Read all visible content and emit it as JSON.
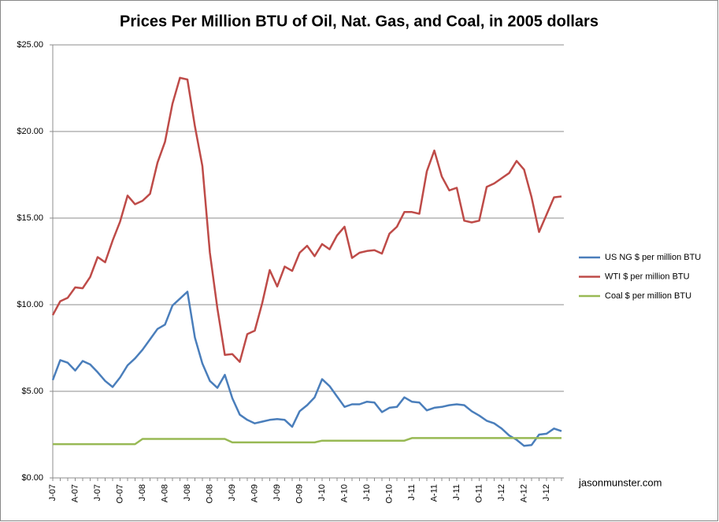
{
  "chart_data": {
    "type": "line",
    "title": "Prices Per Million BTU of Oil, Nat. Gas, and Coal, in 2005 dollars",
    "annotation": "jasonmunster.com",
    "categories": [
      "J-07",
      null,
      null,
      "A-07",
      null,
      null,
      "J-07",
      null,
      null,
      "O-07",
      null,
      null,
      "J-08",
      null,
      null,
      "A-08",
      null,
      null,
      "J-08",
      null,
      null,
      "O-08",
      null,
      null,
      "J-09",
      null,
      null,
      "A-09",
      null,
      null,
      "J-09",
      null,
      null,
      "O-09",
      null,
      null,
      "J-10",
      null,
      null,
      "A-10",
      null,
      null,
      "J-10",
      null,
      null,
      "O-10",
      null,
      null,
      "J-11",
      null,
      null,
      "A-11",
      null,
      null,
      "J-11",
      null,
      null,
      "O-11",
      null,
      null,
      "J-12",
      null,
      null,
      "A-12",
      null,
      null,
      "J-12",
      null,
      null
    ],
    "series": [
      {
        "name": "US NG $ per million BTU",
        "color": "#4a7ebb",
        "values": [
          5.65,
          6.8,
          6.65,
          6.2,
          6.75,
          6.55,
          6.1,
          5.6,
          5.25,
          5.8,
          6.5,
          6.9,
          7.4,
          8.0,
          8.6,
          8.85,
          9.95,
          10.35,
          10.75,
          8.1,
          6.6,
          5.6,
          5.2,
          5.95,
          4.6,
          3.65,
          3.35,
          3.15,
          3.25,
          3.35,
          3.4,
          3.35,
          2.95,
          3.85,
          4.2,
          4.65,
          5.7,
          5.3,
          4.7,
          4.1,
          4.25,
          4.25,
          4.4,
          4.35,
          3.8,
          4.05,
          4.1,
          4.65,
          4.4,
          4.35,
          3.9,
          4.05,
          4.1,
          4.2,
          4.25,
          4.2,
          3.85,
          3.6,
          3.3,
          3.15,
          2.85,
          2.45,
          2.2,
          1.85,
          1.9,
          2.5,
          2.55,
          2.85,
          2.7
        ]
      },
      {
        "name": "WTI $ per million BTU",
        "color": "#be4b48",
        "values": [
          9.4,
          10.2,
          10.4,
          11.0,
          10.95,
          11.6,
          12.75,
          12.45,
          13.7,
          14.8,
          16.3,
          15.8,
          16.0,
          16.4,
          18.2,
          19.4,
          21.6,
          23.1,
          23.0,
          20.3,
          18.0,
          13.0,
          9.8,
          7.1,
          7.15,
          6.7,
          8.3,
          8.5,
          10.1,
          12.0,
          11.05,
          12.2,
          11.95,
          13.0,
          13.4,
          12.8,
          13.5,
          13.2,
          14.0,
          14.5,
          12.7,
          13.0,
          13.1,
          13.15,
          12.95,
          14.1,
          14.5,
          15.35,
          15.35,
          15.25,
          17.7,
          18.9,
          17.4,
          16.6,
          16.75,
          14.85,
          14.75,
          14.85,
          16.8,
          17.0,
          17.3,
          17.6,
          18.3,
          17.8,
          16.2,
          14.2,
          15.2,
          16.2,
          16.25
        ]
      },
      {
        "name": "Coal $ per million BTU",
        "color": "#98b954",
        "values": [
          1.95,
          1.95,
          1.95,
          1.95,
          1.95,
          1.95,
          1.95,
          1.95,
          1.95,
          1.95,
          1.95,
          1.95,
          2.25,
          2.25,
          2.25,
          2.25,
          2.25,
          2.25,
          2.25,
          2.25,
          2.25,
          2.25,
          2.25,
          2.25,
          2.05,
          2.05,
          2.05,
          2.05,
          2.05,
          2.05,
          2.05,
          2.05,
          2.05,
          2.05,
          2.05,
          2.05,
          2.15,
          2.15,
          2.15,
          2.15,
          2.15,
          2.15,
          2.15,
          2.15,
          2.15,
          2.15,
          2.15,
          2.15,
          2.3,
          2.3,
          2.3,
          2.3,
          2.3,
          2.3,
          2.3,
          2.3,
          2.3,
          2.3,
          2.3,
          2.3,
          2.3,
          2.3,
          2.3,
          2.3,
          2.3,
          2.3,
          2.3,
          2.3,
          2.3
        ]
      }
    ],
    "ylim": [
      0,
      25
    ],
    "yticks": [
      {
        "value": 0,
        "label": "$0.00"
      },
      {
        "value": 5,
        "label": "$5.00"
      },
      {
        "value": 10,
        "label": "$10.00"
      },
      {
        "value": 15,
        "label": "$15.00"
      },
      {
        "value": 20,
        "label": "$20.00"
      },
      {
        "value": 25,
        "label": "$25.00"
      }
    ],
    "grid": true,
    "legend": "right"
  }
}
